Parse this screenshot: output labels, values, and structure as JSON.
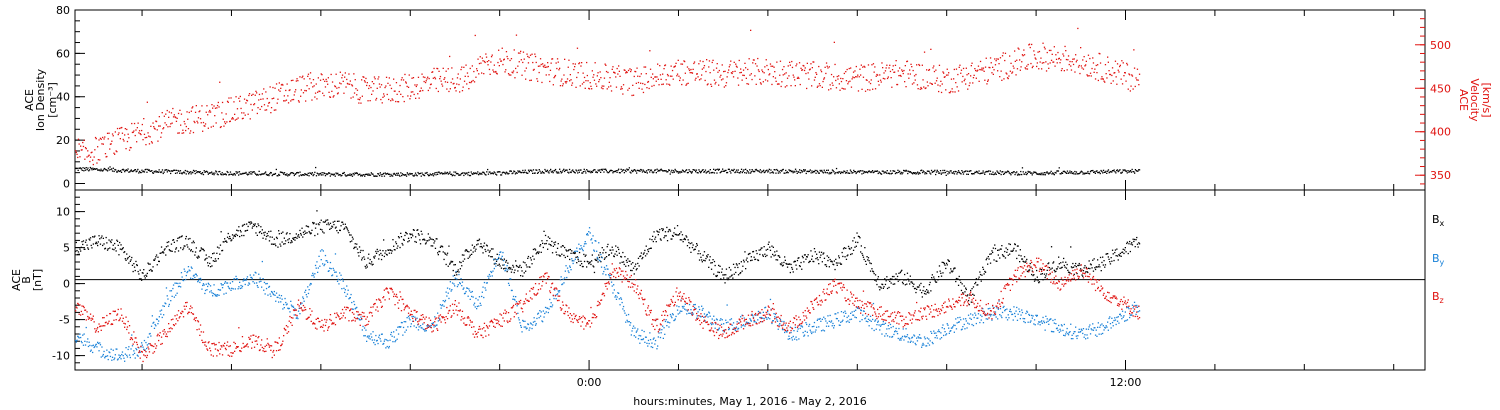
{
  "colors": {
    "black": "#000000",
    "red": "#e0120f",
    "blue": "#1a82d8",
    "background": "#ffffff"
  },
  "xaxis": {
    "title": "hours:minutes,  May  1, 2016 - May  2, 2016",
    "tick_labels": [
      "0:00",
      "12:00"
    ],
    "range_hours_rel_may2": [
      -11.5,
      18.7
    ],
    "data_end_hours_rel_may2": 12.3
  },
  "chart_data": [
    {
      "type": "scatter",
      "panel": "top",
      "left_axis": {
        "label_lines": [
          "ACE",
          "Ion Density",
          "[cm⁻³]"
        ],
        "ticks": [
          "0",
          "20",
          "40",
          "60",
          "80"
        ],
        "ylim": [
          -3,
          80
        ]
      },
      "right_axis": {
        "label_lines": [
          "ACE",
          "Velocity",
          "[km/s]"
        ],
        "ticks": [
          "350",
          "400",
          "450",
          "500"
        ],
        "ylim": [
          333,
          540
        ]
      },
      "series": [
        {
          "axis": "left",
          "color": "black",
          "x": [
            -11.5,
            -10,
            -8,
            -6,
            -4,
            -2,
            -1,
            0,
            2,
            4,
            6,
            8,
            10,
            12.3
          ],
          "y": [
            7,
            6,
            5,
            4.5,
            4.5,
            5,
            6,
            6,
            6,
            6,
            5.5,
            5.5,
            5,
            6
          ]
        },
        {
          "axis": "right",
          "color": "red",
          "x": [
            -11.5,
            -11,
            -10,
            -9.3,
            -8.5,
            -8,
            -7.5,
            -6.5,
            -5.5,
            -5,
            -4.2,
            -3.5,
            -2.6,
            -2.4,
            -2,
            -1,
            0,
            1,
            2,
            3,
            4,
            5,
            6,
            7,
            8,
            9,
            10,
            11,
            12.3
          ],
          "y": [
            372,
            380,
            400,
            412,
            418,
            424,
            432,
            450,
            455,
            447,
            450,
            458,
            463,
            480,
            482,
            472,
            465,
            458,
            470,
            467,
            470,
            465,
            462,
            468,
            460,
            472,
            488,
            482,
            460
          ]
        }
      ]
    },
    {
      "type": "scatter",
      "panel": "bottom",
      "left_axis": {
        "label_lines": [
          "ACE",
          "B",
          "[nT]"
        ],
        "ticks": [
          "-10",
          "-5",
          "0",
          "5",
          "10"
        ],
        "ylim": [
          -12,
          13
        ]
      },
      "legend": {
        "position": "right",
        "entries": [
          "Bx",
          "By",
          "Bz"
        ]
      },
      "series": [
        {
          "name": "Bx",
          "color": "black",
          "x": [
            -11.5,
            -11,
            -10.5,
            -10,
            -9.5,
            -9,
            -8.5,
            -8,
            -7.5,
            -7,
            -6.5,
            -6,
            -5.5,
            -5,
            -4.5,
            -4,
            -3.5,
            -3,
            -2.5,
            -2,
            -1.5,
            -1,
            -0.5,
            0,
            0.5,
            1,
            1.5,
            2,
            2.5,
            3,
            3.5,
            4,
            4.5,
            5,
            5.5,
            6,
            6.5,
            7,
            7.5,
            8,
            8.5,
            9,
            9.5,
            10,
            10.5,
            11,
            11.5,
            12.3
          ],
          "y": [
            5,
            6,
            5,
            1,
            5,
            6,
            3,
            7,
            8,
            6,
            7,
            8,
            8,
            3,
            5,
            7,
            6,
            2,
            6,
            3,
            2,
            6,
            4,
            3,
            5,
            2,
            7,
            7,
            4,
            1,
            3,
            5,
            2,
            4,
            3,
            6,
            0,
            1,
            -1,
            3,
            -2,
            4,
            5,
            1,
            3,
            2,
            3,
            6
          ]
        },
        {
          "name": "By",
          "color": "blue",
          "x": [
            -11.5,
            -11,
            -10.5,
            -10,
            -9.5,
            -9,
            -8.5,
            -8,
            -7.5,
            -7,
            -6.5,
            -6,
            -5.5,
            -5,
            -4.5,
            -4,
            -3.5,
            -3,
            -2.5,
            -2,
            -1.5,
            -1,
            -0.5,
            0,
            0.5,
            1,
            1.5,
            2,
            2.5,
            3,
            3.5,
            4,
            4.5,
            5,
            5.5,
            6,
            6.5,
            7,
            7.5,
            8,
            8.5,
            9,
            9.5,
            10,
            10.5,
            11,
            11.5,
            12.3
          ],
          "y": [
            -7,
            -9,
            -10,
            -9,
            -3,
            2,
            -1,
            0,
            1,
            -2,
            -4,
            4,
            0,
            -7,
            -8,
            -5,
            -6,
            1,
            -3,
            5,
            -6,
            -4,
            2,
            7,
            0,
            -7,
            -8,
            -3,
            -4,
            -6,
            -5,
            -4,
            -7,
            -6,
            -5,
            -4,
            -6,
            -7,
            -8,
            -6,
            -5,
            -4,
            -4,
            -5,
            -6,
            -7,
            -6,
            -3
          ]
        },
        {
          "name": "Bz",
          "color": "red",
          "x": [
            -11.5,
            -11,
            -10.5,
            -10,
            -9.5,
            -9,
            -8.5,
            -8,
            -7.5,
            -7,
            -6.5,
            -6,
            -5.5,
            -5,
            -4.5,
            -4,
            -3.5,
            -3,
            -2.5,
            -2,
            -1.5,
            -1,
            -0.5,
            0,
            0.5,
            1,
            1.5,
            2,
            2.5,
            3,
            3.5,
            4,
            4.5,
            5,
            5.5,
            6,
            6.5,
            7,
            7.5,
            8,
            8.5,
            9,
            9.5,
            10,
            10.5,
            11,
            11.5,
            12.3
          ],
          "y": [
            -3,
            -6,
            -4,
            -10,
            -7,
            -3,
            -9,
            -9,
            -8,
            -9,
            -3,
            -6,
            -4,
            -5,
            -1,
            -4,
            -6,
            -3,
            -7,
            -5,
            -3,
            1,
            -4,
            -6,
            2,
            0,
            -6,
            -1,
            -5,
            -7,
            -5,
            -4,
            -6,
            -3,
            0,
            -3,
            -4,
            -5,
            -4,
            -3,
            -2,
            -4,
            1,
            3,
            0,
            2,
            -1,
            -4
          ]
        }
      ]
    }
  ]
}
